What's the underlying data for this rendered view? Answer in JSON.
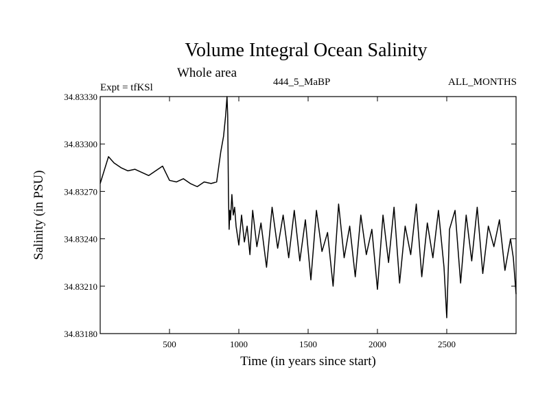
{
  "chart_data": {
    "type": "line",
    "title": "Volume Integral Ocean Salinity",
    "subtitle": "Whole area",
    "experiment_label": "Expt = tfKSl",
    "run_label": "444_5_MaBP",
    "season_label": "ALL_MONTHS",
    "xlabel": "Time (in years since start)",
    "ylabel": "Salinity (in PSU)",
    "xlim": [
      0,
      3000
    ],
    "ylim": [
      34.8318,
      34.8333
    ],
    "x_ticks": [
      500,
      1000,
      1500,
      2000,
      2500
    ],
    "x_tick_labels": [
      "500",
      "1000",
      "1500",
      "2000",
      "2500"
    ],
    "y_ticks": [
      34.8318,
      34.8321,
      34.8324,
      34.8327,
      34.833,
      34.8333
    ],
    "y_tick_labels": [
      "34.83180",
      "34.83210",
      "34.83240",
      "34.83270",
      "34.83300",
      "34.83330"
    ],
    "grid": false,
    "series": [
      {
        "name": "Salinity",
        "color": "#000000",
        "x": [
          0,
          60,
          100,
          150,
          200,
          250,
          300,
          350,
          400,
          450,
          500,
          550,
          600,
          650,
          700,
          750,
          800,
          840,
          870,
          890,
          905,
          915,
          920,
          925,
          930,
          935,
          940,
          950,
          960,
          970,
          980,
          1000,
          1020,
          1040,
          1060,
          1080,
          1100,
          1130,
          1160,
          1200,
          1240,
          1280,
          1320,
          1360,
          1400,
          1440,
          1480,
          1520,
          1560,
          1600,
          1640,
          1680,
          1720,
          1760,
          1800,
          1840,
          1880,
          1920,
          1960,
          2000,
          2040,
          2080,
          2120,
          2160,
          2200,
          2240,
          2280,
          2320,
          2360,
          2400,
          2440,
          2480,
          2500,
          2520,
          2560,
          2600,
          2640,
          2680,
          2720,
          2760,
          2800,
          2840,
          2880,
          2920,
          2960,
          2980,
          3000
        ],
        "y": [
          34.83275,
          34.83292,
          34.83288,
          34.83285,
          34.83283,
          34.83284,
          34.83282,
          34.8328,
          34.83283,
          34.83286,
          34.83277,
          34.83276,
          34.83278,
          34.83275,
          34.83273,
          34.83276,
          34.83275,
          34.83276,
          34.83295,
          34.83305,
          34.83318,
          34.8333,
          34.83318,
          34.83268,
          34.83246,
          34.83258,
          34.83252,
          34.83268,
          34.83255,
          34.8326,
          34.83248,
          34.83236,
          34.83255,
          34.83238,
          34.83248,
          34.8323,
          34.83258,
          34.83235,
          34.8325,
          34.83222,
          34.8326,
          34.83234,
          34.83255,
          34.83228,
          34.83258,
          34.83226,
          34.83252,
          34.83214,
          34.83258,
          34.83232,
          34.83244,
          34.8321,
          34.83262,
          34.83228,
          34.83248,
          34.83216,
          34.83255,
          34.8323,
          34.83246,
          34.83208,
          34.83255,
          34.83225,
          34.8326,
          34.83212,
          34.83248,
          34.8323,
          34.83262,
          34.83216,
          34.8325,
          34.83228,
          34.83258,
          34.83222,
          34.8319,
          34.83246,
          34.83258,
          34.83212,
          34.83255,
          34.83226,
          34.8326,
          34.83218,
          34.83248,
          34.83235,
          34.83252,
          34.8322,
          34.8324,
          34.83228,
          34.83205
        ]
      }
    ]
  }
}
